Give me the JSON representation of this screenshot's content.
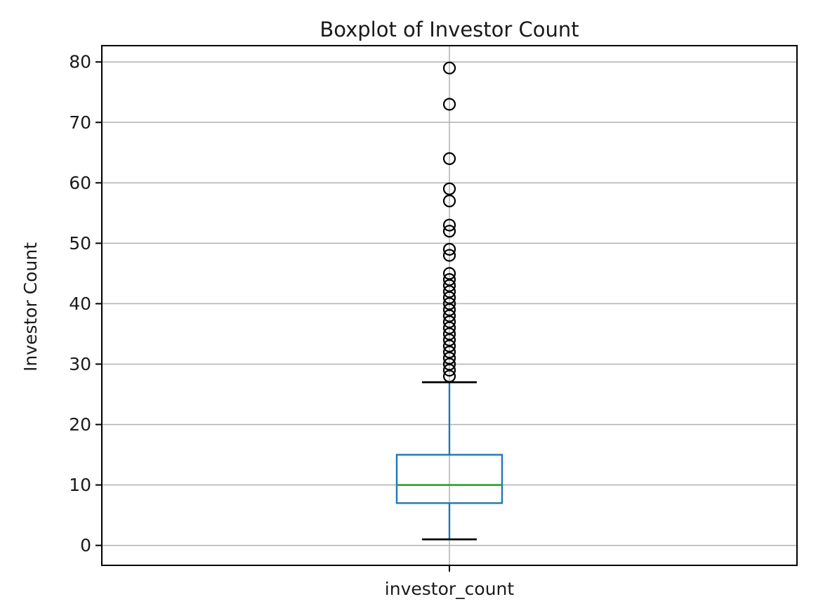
{
  "chart_data": {
    "type": "boxplot",
    "title": "Boxplot of Investor Count",
    "ylabel": "Investor Count",
    "xlabel": "",
    "categories": [
      "investor_count"
    ],
    "y_ticks": [
      0,
      10,
      20,
      30,
      40,
      50,
      60,
      70,
      80
    ],
    "ylim": [
      -3.3,
      82.7
    ],
    "grid": true,
    "legend": false,
    "series": [
      {
        "name": "investor_count",
        "whisker_low": 1,
        "q1": 7,
        "median": 10,
        "q3": 15,
        "whisker_high": 27,
        "outliers": [
          28,
          29,
          30,
          31,
          32,
          33,
          34,
          35,
          36,
          37,
          38,
          39,
          40,
          41,
          42,
          43,
          44,
          45,
          48,
          49,
          52,
          53,
          57,
          59,
          64,
          73,
          79
        ]
      }
    ],
    "colors": {
      "box": "#1f77b4",
      "whisker": "#1f77b4",
      "median": "#2ca02c",
      "cap": "#000000",
      "flier_edge": "#000000",
      "grid": "#b0b0b0",
      "spine": "#000000",
      "text": "#1a1a1a"
    }
  }
}
